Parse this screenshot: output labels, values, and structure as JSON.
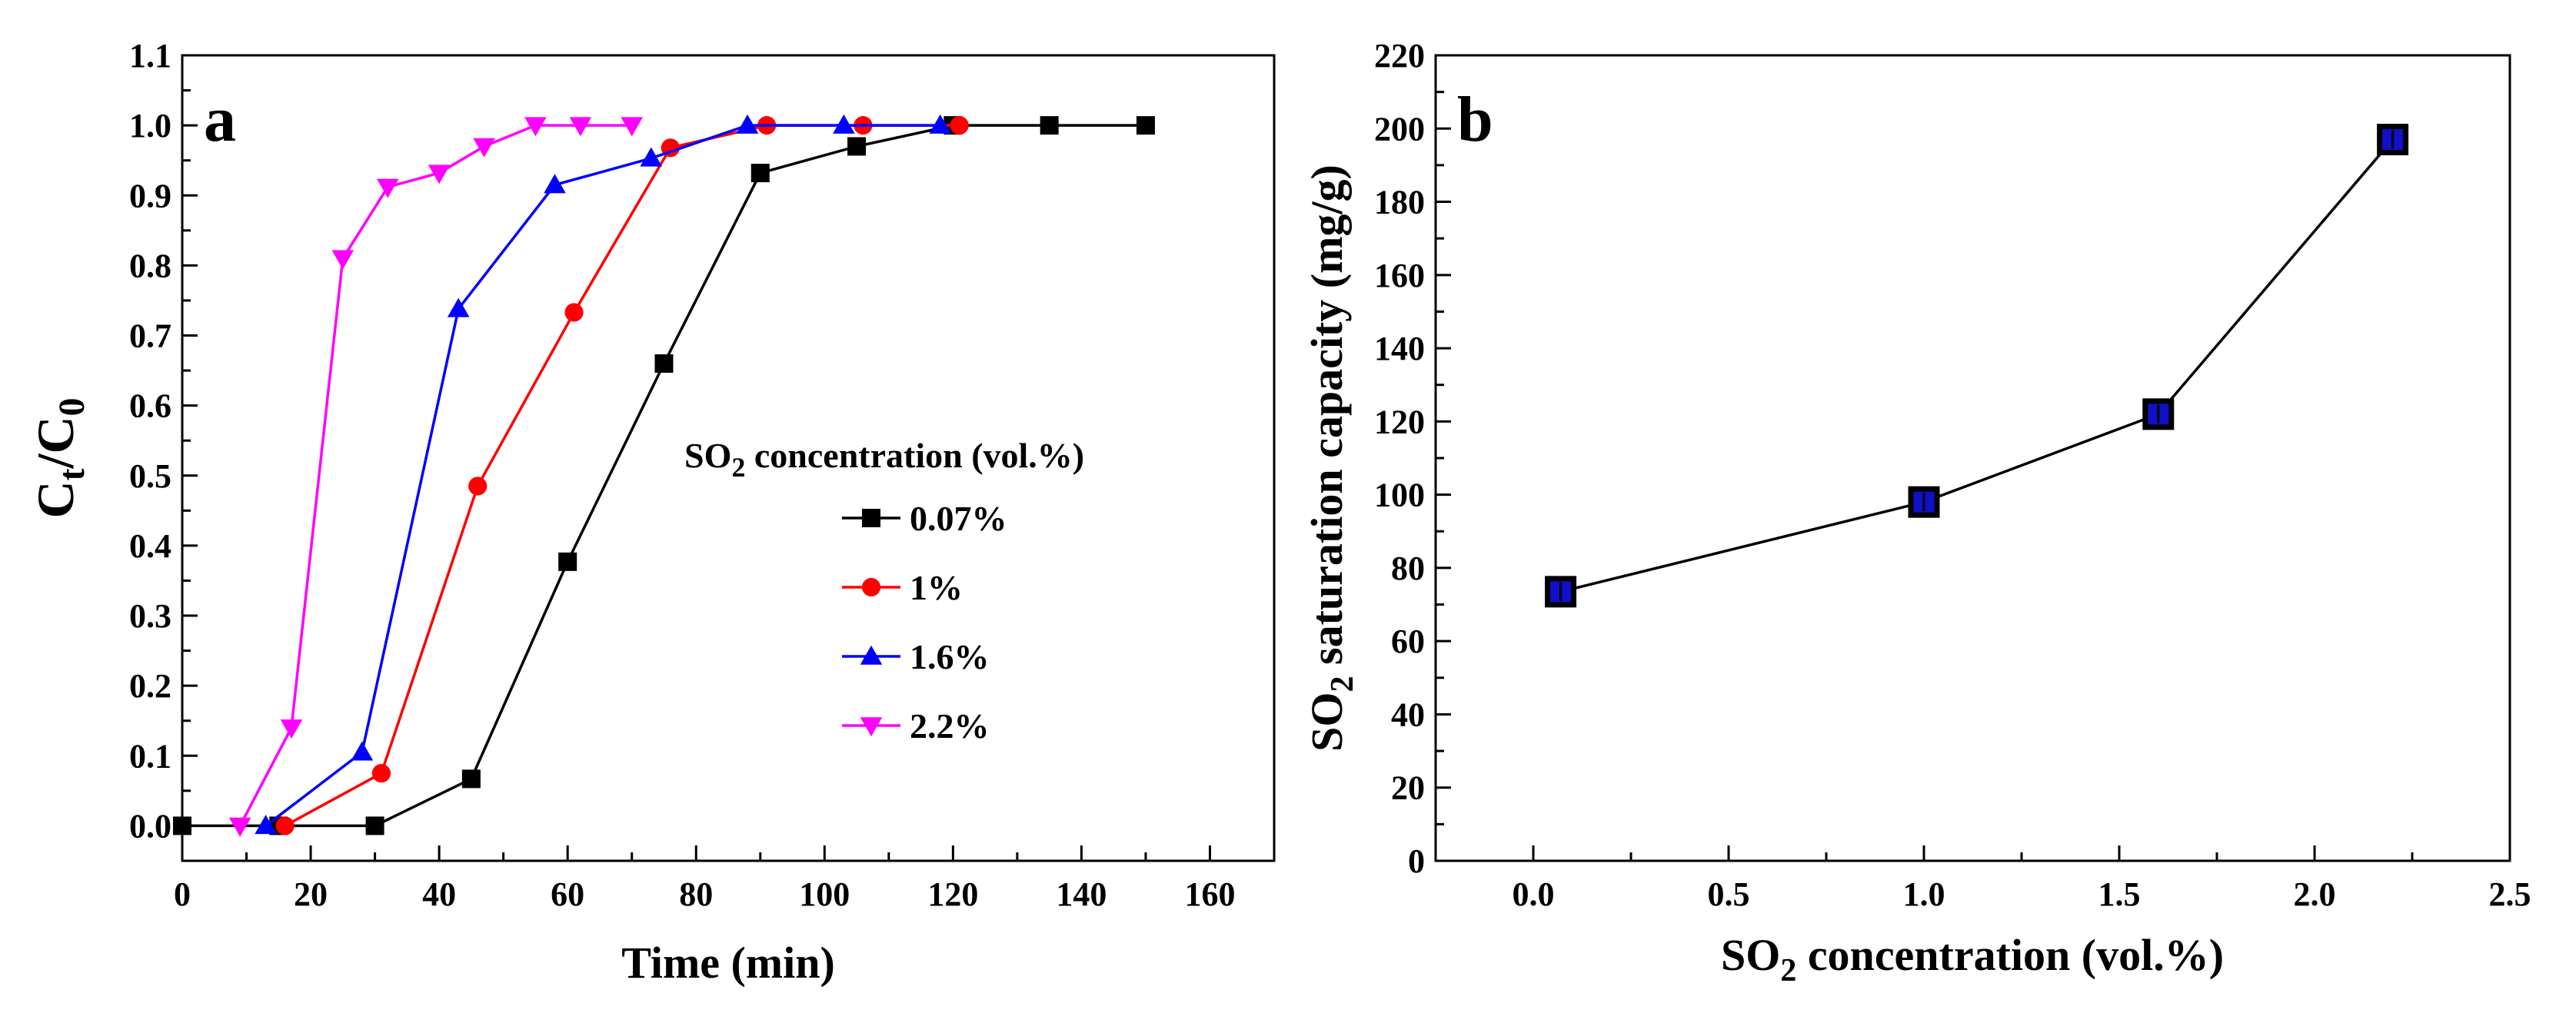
{
  "chart_data": [
    {
      "type": "line",
      "panel_label": "a",
      "xlabel": "Time (min)",
      "ylabel": {
        "main": "C",
        "sub1": "t",
        "mid": "/C",
        "sub2": "0"
      },
      "xlim": [
        0,
        170
      ],
      "ylim": [
        -0.05,
        1.1
      ],
      "xticks": [
        "0",
        "20",
        "40",
        "60",
        "80",
        "100",
        "120",
        "140",
        "160"
      ],
      "yticks": [
        "0.0",
        "0.1",
        "0.2",
        "0.3",
        "0.4",
        "0.5",
        "0.6",
        "0.7",
        "0.8",
        "0.9",
        "1.0",
        "1.1"
      ],
      "legend": {
        "title_prefix": "SO",
        "title_sub": "2",
        "title_suffix": " concentration (vol.%)",
        "placement": "center-right"
      },
      "series": [
        {
          "name": "0.07%",
          "color": "#000000",
          "marker": "square",
          "x": [
            0,
            15,
            30,
            45,
            60,
            75,
            90,
            105,
            120,
            135,
            150
          ],
          "y": [
            0.0,
            0.0,
            0.0,
            0.067,
            0.377,
            0.66,
            0.932,
            0.97,
            1.0,
            1.0,
            1.0
          ]
        },
        {
          "name": "1%",
          "color": "#ff0000",
          "marker": "circle",
          "x": [
            16,
            31,
            46,
            61,
            76,
            91,
            106,
            121
          ],
          "y": [
            0.0,
            0.075,
            0.485,
            0.733,
            0.968,
            1.0,
            1.0,
            1.0
          ]
        },
        {
          "name": "1.6%",
          "color": "#0000ff",
          "marker": "triangle-up",
          "x": [
            13,
            28,
            43,
            58,
            73,
            88,
            103,
            118
          ],
          "y": [
            0.0,
            0.105,
            0.738,
            0.915,
            0.953,
            1.0,
            1.0,
            1.0
          ]
        },
        {
          "name": "2.2%",
          "color": "#ff00ff",
          "marker": "triangle-down",
          "x": [
            9,
            17,
            25,
            32,
            40,
            47,
            55,
            62,
            70
          ],
          "y": [
            0.0,
            0.14,
            0.81,
            0.912,
            0.932,
            0.97,
            1.0,
            1.0,
            1.0
          ]
        }
      ]
    },
    {
      "type": "line",
      "panel_label": "b",
      "xlabel": {
        "prefix": "SO",
        "sub": "2",
        "suffix": " concentration (vol.%)"
      },
      "ylabel": {
        "prefix": "SO",
        "sub": "2",
        "suffix": " saturation capacity (mg/g)"
      },
      "xlim": [
        -0.25,
        2.5
      ],
      "ylim": [
        0,
        220
      ],
      "xticks": [
        "0.0",
        "0.5",
        "1.0",
        "1.5",
        "2.0",
        "2.5"
      ],
      "yticks": [
        "0",
        "20",
        "40",
        "60",
        "80",
        "100",
        "120",
        "140",
        "160",
        "180",
        "200",
        "220"
      ],
      "series": [
        {
          "name": "SO2 saturation capacity",
          "color": "#000000",
          "marker_fill": "#1010c8",
          "marker": "square",
          "x": [
            0.07,
            1.0,
            1.6,
            2.2
          ],
          "y": [
            73.5,
            98,
            122,
            197
          ]
        }
      ]
    }
  ]
}
